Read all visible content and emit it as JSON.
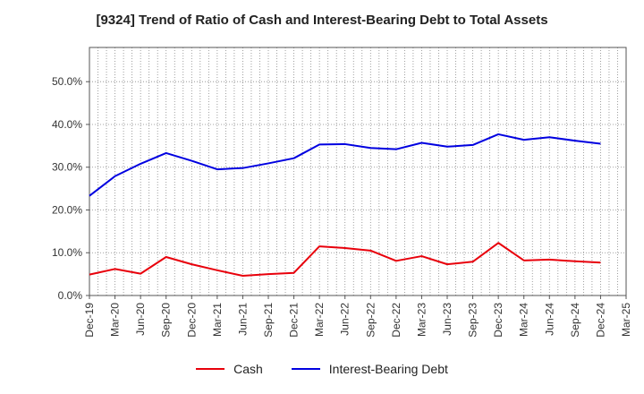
{
  "title": "[9324]  Trend of Ratio of Cash and Interest-Bearing Debt to Total Assets",
  "chart_data": {
    "type": "line",
    "title": "[9324]  Trend of Ratio of Cash and Interest-Bearing Debt to Total Assets",
    "xlabel": "",
    "ylabel": "",
    "ylim": [
      0,
      58
    ],
    "yticks": [
      0,
      10,
      20,
      30,
      40,
      50
    ],
    "ytick_labels": [
      "0.0%",
      "10.0%",
      "20.0%",
      "30.0%",
      "40.0%",
      "50.0%"
    ],
    "x_tick_labels": [
      "Dec-19",
      "Mar-20",
      "Jun-20",
      "Sep-20",
      "Dec-20",
      "Mar-21",
      "Jun-21",
      "Sep-21",
      "Dec-21",
      "Mar-22",
      "Jun-22",
      "Sep-22",
      "Dec-22",
      "Mar-23",
      "Jun-23",
      "Sep-23",
      "Dec-23",
      "Mar-24",
      "Jun-24",
      "Sep-24",
      "Dec-24",
      "Mar-25"
    ],
    "categories": [
      "Dec-19",
      "Mar-20",
      "Jun-20",
      "Sep-20",
      "Dec-20",
      "Mar-21",
      "Jun-21",
      "Sep-21",
      "Dec-21",
      "Mar-22",
      "Jun-22",
      "Sep-22",
      "Dec-22",
      "Mar-23",
      "Jun-23",
      "Sep-23",
      "Dec-23",
      "Mar-24",
      "Jun-24",
      "Sep-24",
      "Dec-24"
    ],
    "series": [
      {
        "name": "Cash",
        "color": "#e8000b",
        "values": [
          4.9,
          6.2,
          5.1,
          9.0,
          7.3,
          5.9,
          4.6,
          5.0,
          5.3,
          11.5,
          11.1,
          10.5,
          8.1,
          9.2,
          7.3,
          7.9,
          12.3,
          8.2,
          8.4,
          8.0,
          7.7
        ]
      },
      {
        "name": "Interest-Bearing Debt",
        "color": "#0000e0",
        "values": [
          23.3,
          27.9,
          30.8,
          33.3,
          31.5,
          29.5,
          29.8,
          30.9,
          32.1,
          35.3,
          35.4,
          34.5,
          34.2,
          35.7,
          34.8,
          35.2,
          37.7,
          36.4,
          37.0,
          36.2,
          35.5
        ]
      }
    ],
    "grid": true,
    "grid_style": "dotted",
    "legend_position": "bottom"
  }
}
